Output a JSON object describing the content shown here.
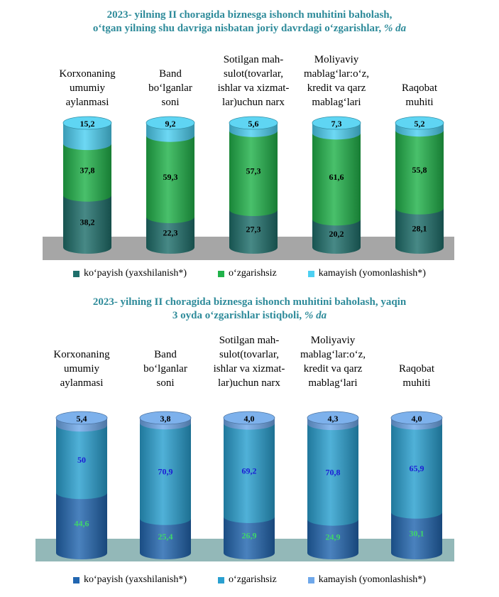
{
  "chart_data": [
    {
      "type": "bar",
      "stacked": true,
      "title_line1": "2023- yilning II choragida biznesga ishonch muhitini baholash,",
      "title_line2": "o‘tgan yilning shu davriga nisbatan joriy davrdagi o‘zgarishlar,",
      "title_unit": "% da",
      "categories": [
        "Korxonaning umumiy aylanmasi",
        "Band bo‘lganlar soni",
        "Sotilgan mah-sulot(tovarlar, ishlar va xizmat-lar)uchun narx",
        "Moliyaviy mablag‘lar:o‘z, kredit va qarz mablag‘lari",
        "Raqobat muhiti"
      ],
      "category_lines": [
        [
          "Korxonaning",
          "umumiy",
          "aylanmasi"
        ],
        [
          "Band",
          "bo‘lganlar",
          "soni"
        ],
        [
          "Sotilgan mah-",
          "sulot(tovarlar,",
          "ishlar va xizmat-",
          "lar)uchun narx"
        ],
        [
          "Moliyaviy",
          "mablag‘lar:o‘z,",
          "kredit va qarz",
          "mablag‘lari"
        ],
        [
          "Raqobat",
          "muhiti"
        ]
      ],
      "series": [
        {
          "name": "ko‘payish (yaxshilanish*)",
          "values": [
            38.2,
            22.3,
            27.3,
            20.2,
            28.1
          ],
          "labels": [
            "38,2",
            "22,3",
            "27,3",
            "20,2",
            "28,1"
          ]
        },
        {
          "name": "o‘zgarishsiz",
          "values": [
            37.8,
            59.3,
            57.3,
            61.6,
            55.8
          ],
          "labels": [
            "37,8",
            "59,3",
            "57,3",
            "61,6",
            "55,8"
          ]
        },
        {
          "name": "kamayish (yomonlashish*)",
          "values": [
            15.2,
            9.2,
            5.6,
            7.3,
            5.2
          ],
          "labels": [
            "15,2",
            "9,2",
            "5,6",
            "7,3",
            "5,2"
          ]
        }
      ],
      "colors": [
        "#1f6f6b",
        "#21b24a",
        "#4dd0f2"
      ],
      "label_colors": [
        "#000000",
        "#000000",
        "#000000"
      ],
      "platform_color": "#a6a6a6",
      "legend_position": "bottom"
    },
    {
      "type": "bar",
      "stacked": true,
      "title_line1": "2023- yilning II choragida biznesga ishonch muhitini baholash, yaqin",
      "title_line2": "3 oyda o‘zgarishlar istiqboli,",
      "title_unit": "% da",
      "categories": [
        "Korxonaning umumiy aylanmasi",
        "Band bo‘lganlar soni",
        "Sotilgan mah-sulot(tovarlar, ishlar va xizmat-lar)uchun narx",
        "Moliyaviy mablag‘lar:o‘z, kredit va qarz mablag‘lari",
        "Raqobat muhiti"
      ],
      "category_lines": [
        [
          "Korxonaning",
          "umumiy",
          "aylanmasi"
        ],
        [
          "Band",
          "bo‘lganlar",
          "soni"
        ],
        [
          "Sotilgan mah-",
          "sulot(tovarlar,",
          "ishlar va xizmat-",
          "lar)uchun narx"
        ],
        [
          "Moliyaviy",
          "mablag‘lar:o‘z,",
          "kredit va qarz",
          "mablag‘lari"
        ],
        [
          "Raqobat",
          "muhiti"
        ]
      ],
      "series": [
        {
          "name": "ko‘payish (yaxshilanish*)",
          "values": [
            44.6,
            25.4,
            26.9,
            24.9,
            30.1
          ],
          "labels": [
            "44,6",
            "25,4",
            "26,9",
            "24,9",
            "30,1"
          ]
        },
        {
          "name": "o‘zgarishsiz",
          "values": [
            50,
            70.9,
            69.2,
            70.8,
            65.9
          ],
          "labels": [
            "50",
            "70,9",
            "69,2",
            "70,8",
            "65,9"
          ]
        },
        {
          "name": "kamayish (yomonlashish*)",
          "values": [
            5.4,
            3.8,
            4.0,
            4.3,
            4.0
          ],
          "labels": [
            "5,4",
            "3,8",
            "4,0",
            "4,3",
            "4,0"
          ]
        }
      ],
      "colors": [
        "#2266b0",
        "#2aa0d0",
        "#6fa8ea"
      ],
      "label_colors": [
        "#3ed66a",
        "#1b1bd6",
        "#000000"
      ],
      "platform_color": "#93b8b8",
      "legend_position": "bottom"
    }
  ]
}
